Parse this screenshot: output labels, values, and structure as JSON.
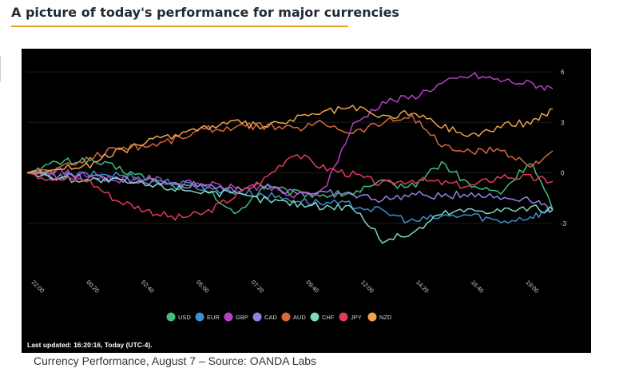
{
  "page": {
    "heading": "A picture of today's performance for major currencies",
    "caption": "Currency Performance, August 7 – Source: OANDA Labs"
  },
  "chart_data": {
    "type": "line",
    "title": "",
    "xlabel": "",
    "ylabel": "",
    "ylim": [
      -6,
      7
    ],
    "yticks": [
      6,
      3,
      0,
      -3
    ],
    "x_ticks": [
      "22:00",
      "00:20",
      "02:40",
      "05:00",
      "07:20",
      "09:40",
      "12:00",
      "14:20",
      "16:40",
      "19:00"
    ],
    "grid": true,
    "legend_position": "bottom",
    "footer_note": "Last updated: 16:20:16, Today (UTC-4).",
    "x": [
      0,
      8,
      16,
      24,
      32,
      40,
      48,
      56,
      64,
      72,
      80,
      88,
      96,
      104,
      112,
      120,
      128,
      136,
      142
    ],
    "series": [
      {
        "name": "USD",
        "color": "#3ec07a",
        "values": [
          0,
          0.6,
          0.8,
          0.3,
          -0.3,
          -0.8,
          -0.9,
          -2.5,
          -0.8,
          -1.2,
          -1.3,
          -1.2,
          -0.6,
          -0.8,
          0.6,
          -0.8,
          -1.2,
          0.7,
          -2.2
        ]
      },
      {
        "name": "EUR",
        "color": "#3a8fcf",
        "values": [
          0,
          -0.2,
          -0.1,
          -0.1,
          -0.3,
          -0.6,
          -0.9,
          -1.1,
          -1.3,
          -1.6,
          -1.8,
          -1.9,
          -2.3,
          -2.9,
          -2.6,
          -2.5,
          -2.9,
          -2.6,
          -2.2
        ]
      },
      {
        "name": "GBP",
        "color": "#b542c4",
        "values": [
          0,
          0.1,
          -0.2,
          -0.4,
          -0.3,
          -0.6,
          -0.7,
          -0.9,
          -0.8,
          -1.4,
          -1.1,
          2.8,
          4.2,
          4.5,
          5.3,
          5.8,
          5.5,
          5.3,
          5.0
        ]
      },
      {
        "name": "CAD",
        "color": "#9a7fe0",
        "values": [
          0,
          -0.2,
          -0.3,
          -0.4,
          -0.5,
          -0.7,
          -0.7,
          -0.9,
          -0.8,
          -1.1,
          -1.2,
          -1.3,
          -1.6,
          -1.3,
          -1.4,
          -1.2,
          -1.5,
          -1.5,
          -2.2
        ]
      },
      {
        "name": "AUD",
        "color": "#d8683c",
        "values": [
          0,
          0.2,
          0.8,
          1.5,
          1.6,
          2.0,
          2.6,
          2.7,
          2.8,
          2.6,
          3.0,
          2.4,
          3.0,
          3.4,
          1.6,
          1.2,
          1.4,
          0.4,
          1.3
        ]
      },
      {
        "name": "CHF",
        "color": "#7fd6c2",
        "values": [
          0,
          -0.3,
          -0.4,
          -0.5,
          -0.7,
          -0.9,
          -1.1,
          -1.3,
          -1.6,
          -1.8,
          -2.0,
          -2.0,
          -4.0,
          -3.6,
          -2.4,
          -2.2,
          -2.2,
          -2.1,
          -2.2
        ]
      },
      {
        "name": "JPY",
        "color": "#e23b5a",
        "values": [
          0,
          -0.4,
          -0.4,
          -1.6,
          -2.2,
          -2.7,
          -2.4,
          -1.4,
          -0.4,
          1.2,
          0.3,
          -0.1,
          -0.7,
          -0.4,
          -0.6,
          -0.8,
          -0.2,
          -0.3,
          -0.5
        ]
      },
      {
        "name": "NZD",
        "color": "#eea24a",
        "values": [
          0,
          0.3,
          0.4,
          1.2,
          1.8,
          2.3,
          2.7,
          3.0,
          2.7,
          3.2,
          3.6,
          3.9,
          3.3,
          3.6,
          2.8,
          2.2,
          2.8,
          3.0,
          3.8
        ]
      }
    ]
  }
}
